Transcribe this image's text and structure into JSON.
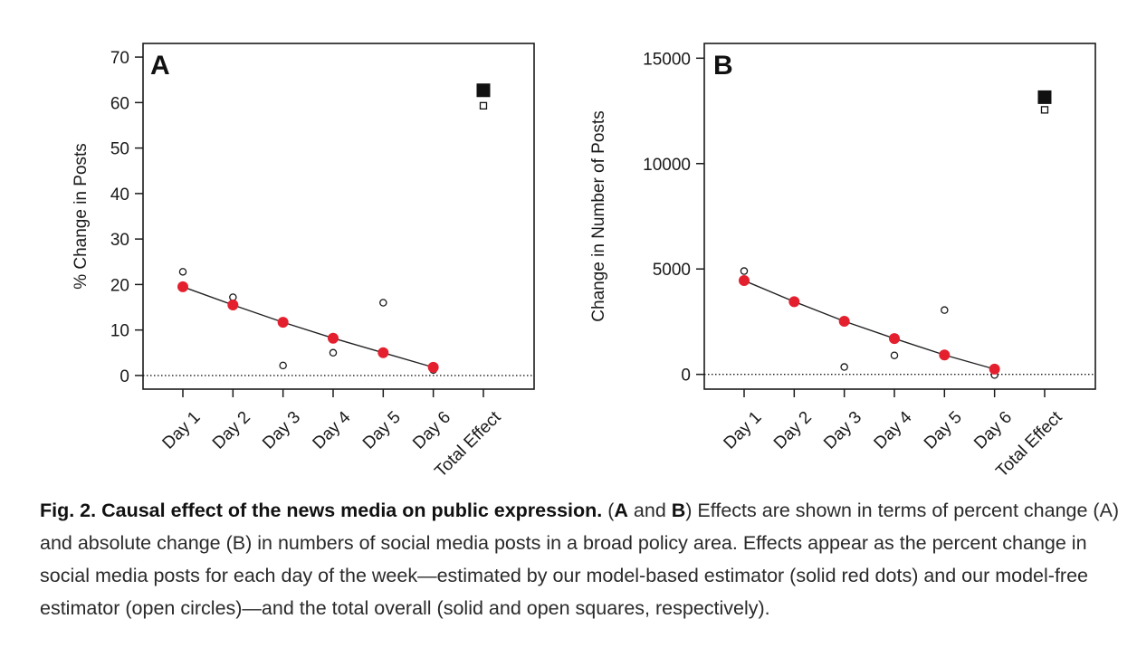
{
  "chart_data": [
    {
      "type": "scatter",
      "panel": "A",
      "ylabel": "% Change in Posts",
      "xlabel": "",
      "categories": [
        "Day 1",
        "Day 2",
        "Day 3",
        "Day 4",
        "Day 5",
        "Day 6",
        "Total Effect"
      ],
      "ylim": [
        -3,
        73
      ],
      "yticks": [
        0,
        10,
        20,
        30,
        40,
        50,
        60,
        70
      ],
      "reference_line": 0,
      "series": [
        {
          "name": "model-based estimator (solid red dots)",
          "marker": "solid-red-dot",
          "connected": true,
          "values": [
            19.5,
            15.5,
            11.7,
            8.2,
            5.0,
            1.8
          ]
        },
        {
          "name": "model-free estimator (open circles)",
          "marker": "open-circle",
          "values": [
            22.8,
            17.2,
            2.2,
            5.0,
            16.0,
            1.2
          ]
        },
        {
          "name": "total effect model-based (solid square)",
          "marker": "solid-square",
          "x": "Total Effect",
          "value": 62.7
        },
        {
          "name": "total effect model-free (open square)",
          "marker": "open-square",
          "x": "Total Effect",
          "value": 59.3
        }
      ]
    },
    {
      "type": "scatter",
      "panel": "B",
      "ylabel": "Change in Number of Posts",
      "xlabel": "",
      "categories": [
        "Day 1",
        "Day 2",
        "Day 3",
        "Day 4",
        "Day 5",
        "Day 6",
        "Total Effect"
      ],
      "ylim": [
        -700,
        15700
      ],
      "yticks": [
        0,
        5000,
        10000,
        15000
      ],
      "reference_line": 0,
      "series": [
        {
          "name": "model-based estimator (solid red dots)",
          "marker": "solid-red-dot",
          "connected": true,
          "values": [
            4450,
            3450,
            2520,
            1700,
            920,
            250
          ]
        },
        {
          "name": "model-free estimator (open circles)",
          "marker": "open-circle",
          "values": [
            4900,
            3450,
            350,
            900,
            3050,
            -30
          ]
        },
        {
          "name": "total effect model-based (solid square)",
          "marker": "solid-square",
          "x": "Total Effect",
          "value": 13150
        },
        {
          "name": "total effect model-free (open square)",
          "marker": "open-square",
          "x": "Total Effect",
          "value": 12550
        }
      ]
    }
  ],
  "caption": {
    "heading": "Fig. 2. Causal effect of the news media on public expression.",
    "open_paren": " (",
    "a_letter": "A",
    "and_word": " and ",
    "b_letter": "B",
    "body": ") Effects are shown in terms of percent change (A) and absolute change (B) in numbers of social media posts in a broad policy area. Effects appear as the percent change in social media posts for each day of the week—estimated by our model-based estimator (solid red dots) and our model-free estimator (open circles)—and the total overall (solid and open squares, respectively)."
  },
  "colors": {
    "model_based": "#e4202e",
    "axis": "#1a1a1a",
    "open_marker": "#1a1a1a"
  }
}
